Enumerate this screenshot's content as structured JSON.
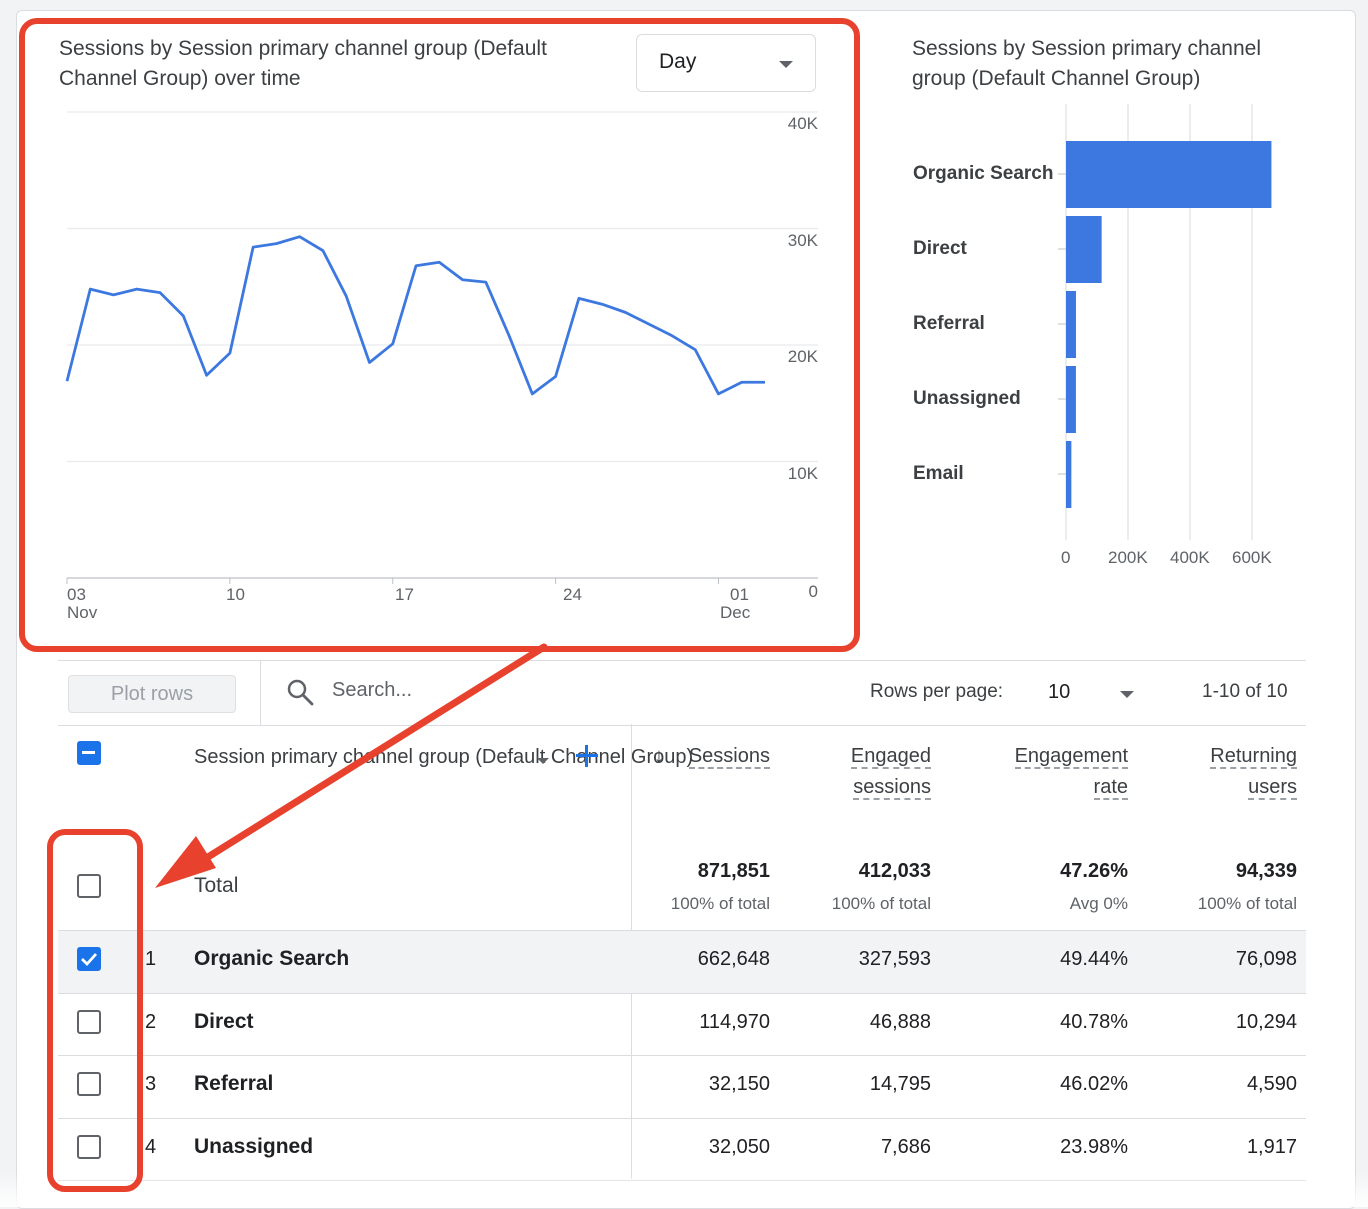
{
  "line_chart": {
    "title": "Sessions by Session primary channel group (Default Channel Group) over time",
    "granularity": "Day",
    "chart_data": {
      "type": "line",
      "title": "Sessions by Session primary channel group (Default Channel Group) over time",
      "x": [
        "Nov 02",
        "Nov 03",
        "Nov 04",
        "Nov 05",
        "Nov 06",
        "Nov 07",
        "Nov 08",
        "Nov 09",
        "Nov 10",
        "Nov 11",
        "Nov 12",
        "Nov 13",
        "Nov 14",
        "Nov 15",
        "Nov 16",
        "Nov 17",
        "Nov 18",
        "Nov 19",
        "Nov 20",
        "Nov 21",
        "Nov 22",
        "Nov 23",
        "Nov 24",
        "Nov 25",
        "Nov 26",
        "Nov 27",
        "Nov 28",
        "Nov 29",
        "Nov 30",
        "Dec 01",
        "Dec 02"
      ],
      "series": [
        {
          "values": [
            16900,
            24800,
            24300,
            24800,
            24500,
            22500,
            17400,
            19300,
            28400,
            28700,
            29300,
            28100,
            24200,
            18500,
            20100,
            26800,
            27100,
            25600,
            25400,
            20800,
            15800,
            17300,
            24000,
            23500,
            22800,
            21800,
            20800,
            19600,
            15800,
            16800,
            16800
          ]
        }
      ],
      "x_ticks": [
        {
          "day": "03",
          "month": "Nov"
        },
        {
          "day": "10",
          "month": ""
        },
        {
          "day": "17",
          "month": ""
        },
        {
          "day": "24",
          "month": ""
        },
        {
          "day": "01",
          "month": "Dec"
        }
      ],
      "y_ticks": [
        "40K",
        "30K",
        "20K",
        "10K",
        "0"
      ],
      "ylim": [
        0,
        40000
      ],
      "grid": true
    }
  },
  "bar_chart": {
    "title": "Sessions by Session primary channel group (Default Channel Group)",
    "chart_data": {
      "type": "bar",
      "orientation": "horizontal",
      "title": "Sessions by Session primary channel group (Default Channel Group)",
      "categories": [
        "Organic Search",
        "Direct",
        "Referral",
        "Unassigned",
        "Email"
      ],
      "values": [
        662648,
        114970,
        32150,
        32050,
        17300
      ],
      "x_ticks": [
        "0",
        "200K",
        "400K",
        "600K"
      ],
      "xlim": [
        0,
        660000
      ],
      "grid": true
    }
  },
  "toolbar": {
    "plot_rows_label": "Plot rows",
    "search_placeholder": "Search...",
    "rows_per_page_label": "Rows per page:",
    "rows_per_page_value": "10",
    "pagination": "1-10 of 10"
  },
  "table": {
    "dimension_header": "Session primary channel group (Default Channel Group)",
    "add_dimension_icon": "plus-icon",
    "columns": [
      {
        "line1": "Sessions",
        "line2": "",
        "sorted": true
      },
      {
        "line1": "Engaged",
        "line2": "sessions",
        "sorted": false
      },
      {
        "line1": "Engagement",
        "line2": "rate",
        "sorted": false
      },
      {
        "line1": "Returning",
        "line2": "users",
        "sorted": false
      }
    ],
    "total": {
      "label": "Total",
      "values": [
        "871,851",
        "412,033",
        "47.26%",
        "94,339"
      ],
      "subs": [
        "100% of total",
        "100% of total",
        "Avg 0%",
        "100% of total"
      ]
    },
    "rows": [
      {
        "num": "1",
        "name": "Organic Search",
        "checked": true,
        "values": [
          "662,648",
          "327,593",
          "49.44%",
          "76,098"
        ]
      },
      {
        "num": "2",
        "name": "Direct",
        "checked": false,
        "values": [
          "114,970",
          "46,888",
          "40.78%",
          "10,294"
        ]
      },
      {
        "num": "3",
        "name": "Referral",
        "checked": false,
        "values": [
          "32,150",
          "14,795",
          "46.02%",
          "4,590"
        ]
      },
      {
        "num": "4",
        "name": "Unassigned",
        "checked": false,
        "values": [
          "32,050",
          "7,686",
          "23.98%",
          "1,917"
        ]
      }
    ]
  },
  "colors": {
    "series_blue": "#3c78e0",
    "checkbox_blue": "#1a73e8",
    "annotation_red": "#e8412d"
  }
}
